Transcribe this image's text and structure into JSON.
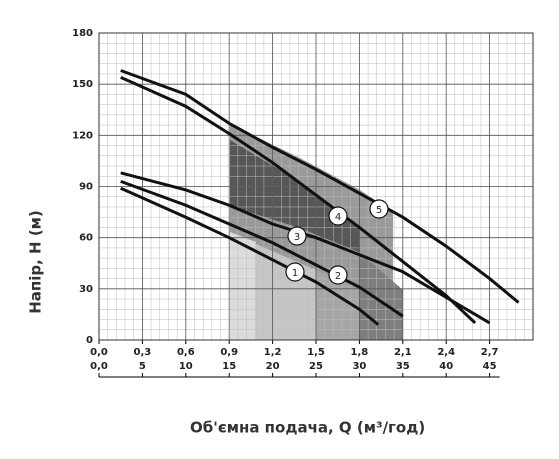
{
  "chart_data": {
    "type": "line",
    "xlabel": "Об'ємна подача, Q (м³/год)",
    "ylabel": "Напір, H (м)",
    "xlim": [
      0,
      3.0
    ],
    "xticks": [
      {
        "value": 0,
        "label": "0,0"
      },
      {
        "value": 0.3,
        "label": "0,3"
      },
      {
        "value": 0.6,
        "label": "0,6"
      },
      {
        "value": 0.9,
        "label": "0,9"
      },
      {
        "value": 1.2,
        "label": "1,2"
      },
      {
        "value": 1.5,
        "label": "1,5"
      },
      {
        "value": 1.8,
        "label": "1,8"
      },
      {
        "value": 2.1,
        "label": "2,1"
      },
      {
        "value": 2.4,
        "label": "2,4"
      },
      {
        "value": 2.7,
        "label": "2,7"
      }
    ],
    "x2lim": [
      0,
      50
    ],
    "x2ticks": [
      {
        "value": 0,
        "label": "0,0"
      },
      5,
      10,
      15,
      20,
      25,
      30,
      35,
      40,
      45
    ],
    "ylim": [
      0,
      180
    ],
    "yticks": [
      0,
      30,
      60,
      90,
      120,
      150,
      180
    ],
    "grid": true,
    "series": [
      {
        "name": "1",
        "color": "#111",
        "x": [
          0.15,
          0.6,
          0.9,
          1.2,
          1.5,
          1.8,
          1.93
        ],
        "values": [
          89,
          72,
          60,
          47,
          34,
          18,
          9
        ]
      },
      {
        "name": "2",
        "color": "#111",
        "x": [
          0.15,
          0.6,
          0.9,
          1.2,
          1.5,
          1.8,
          2.1
        ],
        "values": [
          93,
          79,
          68,
          57,
          44,
          31,
          14
        ]
      },
      {
        "name": "3",
        "color": "#111",
        "x": [
          0.15,
          0.6,
          0.9,
          1.2,
          1.5,
          1.8,
          2.1,
          2.4,
          2.7
        ],
        "values": [
          98,
          88,
          79,
          68,
          60,
          50,
          40,
          25,
          10
        ]
      },
      {
        "name": "4",
        "color": "#111",
        "x": [
          0.15,
          0.6,
          0.9,
          1.2,
          1.5,
          1.8,
          2.1,
          2.4,
          2.6
        ],
        "values": [
          154,
          137,
          121,
          104,
          85,
          66,
          46,
          26,
          10
        ]
      },
      {
        "name": "5",
        "color": "#111",
        "x": [
          0.15,
          0.6,
          0.9,
          1.2,
          1.5,
          1.8,
          2.1,
          2.4,
          2.7,
          2.9
        ],
        "values": [
          158,
          144,
          127,
          113,
          100,
          86,
          72,
          55,
          36,
          22
        ]
      }
    ]
  }
}
